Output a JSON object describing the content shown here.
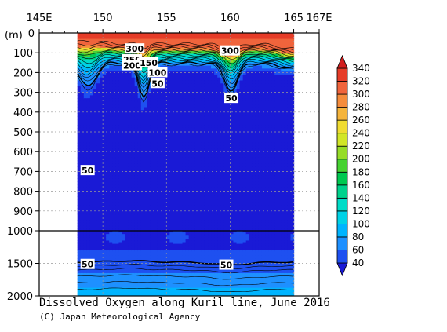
{
  "chart_data": {
    "type": "heatmap",
    "title": "Dissolved Oxygen along Kuril line, June 2016",
    "credit": "(C) Japan Meteorological Agency",
    "depth_unit_label": "(m)",
    "x_ticks": [
      "145E",
      "150",
      "155",
      "160",
      "165",
      "167E"
    ],
    "x_tick_values": [
      145,
      150,
      155,
      160,
      165,
      167
    ],
    "xlim": [
      145,
      167
    ],
    "data_xlim": [
      148,
      165
    ],
    "y_ticks_upper": [
      0,
      100,
      200,
      300,
      400,
      500,
      600,
      700,
      800,
      900,
      1000
    ],
    "y_ticks_lower": [
      1000,
      1500,
      2000
    ],
    "ylim_upper": [
      0,
      1000
    ],
    "ylim_lower": [
      1000,
      2000
    ],
    "colorbar": {
      "levels": [
        40,
        60,
        80,
        100,
        120,
        140,
        160,
        180,
        200,
        220,
        240,
        260,
        280,
        300,
        320,
        340
      ],
      "colors": [
        "#1a1ad6",
        "#1e50f0",
        "#1e90ff",
        "#00b4ff",
        "#00d2e6",
        "#00dcc8",
        "#00d28c",
        "#00c850",
        "#46d232",
        "#96dc28",
        "#d2e628",
        "#f0dc32",
        "#f5b43c",
        "#f58c3c",
        "#f0643c",
        "#e63c28",
        "#d21e1e"
      ]
    },
    "contour_labels": [
      {
        "text": "300",
        "x": 152.5,
        "depth": 80
      },
      {
        "text": "250",
        "x": 152.3,
        "depth": 135
      },
      {
        "text": "200",
        "x": 152.3,
        "depth": 165
      },
      {
        "text": "150",
        "x": 153.6,
        "depth": 150
      },
      {
        "text": "100",
        "x": 154.3,
        "depth": 200
      },
      {
        "text": "50",
        "x": 154.3,
        "depth": 255
      },
      {
        "text": "300",
        "x": 160.0,
        "depth": 90
      },
      {
        "text": "50",
        "x": 160.1,
        "depth": 330
      },
      {
        "text": "50",
        "x": 148.8,
        "depth": 695
      },
      {
        "text": "50",
        "x": 148.8,
        "depth": 1515
      },
      {
        "text": "50",
        "x": 159.7,
        "depth": 1525
      }
    ],
    "grid": true
  }
}
